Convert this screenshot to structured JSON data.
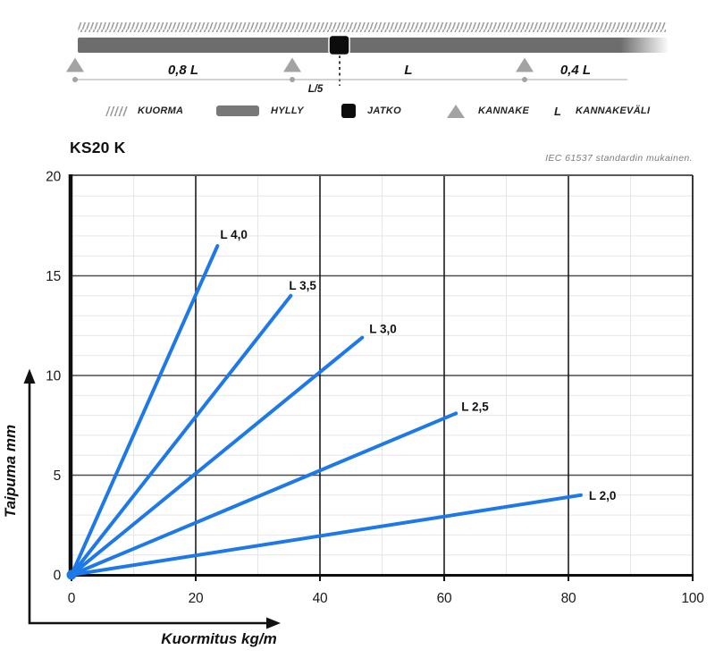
{
  "diagram": {
    "span_left": "0,8 L",
    "span_mid": "L",
    "span_right": "0,4 L",
    "joint_offset": "L/5"
  },
  "legend": {
    "items": [
      {
        "icon": "load-hatch-icon",
        "label": "KUORMA"
      },
      {
        "icon": "shelf-icon",
        "label": "HYLLY"
      },
      {
        "icon": "joint-icon",
        "label": "JATKO"
      },
      {
        "icon": "support-icon",
        "label": "KANNAKE"
      },
      {
        "icon": "letter-L-symbol",
        "symbol": "L",
        "label": "KANNAKEVÄLI"
      }
    ]
  },
  "chart": {
    "title": "KS20 K",
    "note": "IEC 61537 standardin mukainen."
  },
  "chart_data": {
    "type": "line",
    "title": "KS20 K",
    "xlabel": "Kuormitus kg/m",
    "ylabel": "Taipuma mm",
    "xlim": [
      0,
      100
    ],
    "ylim": [
      0,
      20
    ],
    "x_ticks": [
      0,
      20,
      40,
      60,
      80,
      100
    ],
    "y_ticks": [
      0,
      5,
      10,
      15,
      20
    ],
    "x_minor_step": 10,
    "y_minor_step": 1,
    "grid": true,
    "legend_position": "inline-labels",
    "line_color": "#1e79e8",
    "series": [
      {
        "name": "L 4,0",
        "x": [
          0,
          23.5
        ],
        "y": [
          0,
          16.5
        ],
        "label_offset": [
          3,
          -8
        ]
      },
      {
        "name": "L 3,5",
        "x": [
          0,
          35.3
        ],
        "y": [
          0,
          14.0
        ],
        "label_offset": [
          -2,
          -7
        ]
      },
      {
        "name": "L 3,0",
        "x": [
          0,
          46.8
        ],
        "y": [
          0,
          11.9
        ],
        "label_offset": [
          8,
          -5
        ]
      },
      {
        "name": "L 2,5",
        "x": [
          0,
          61.9
        ],
        "y": [
          0,
          8.1
        ],
        "label_offset": [
          6,
          -3
        ]
      },
      {
        "name": "L 2,0",
        "x": [
          0,
          82.0
        ],
        "y": [
          0,
          4.0
        ],
        "label_offset": [
          9,
          5
        ]
      }
    ]
  }
}
